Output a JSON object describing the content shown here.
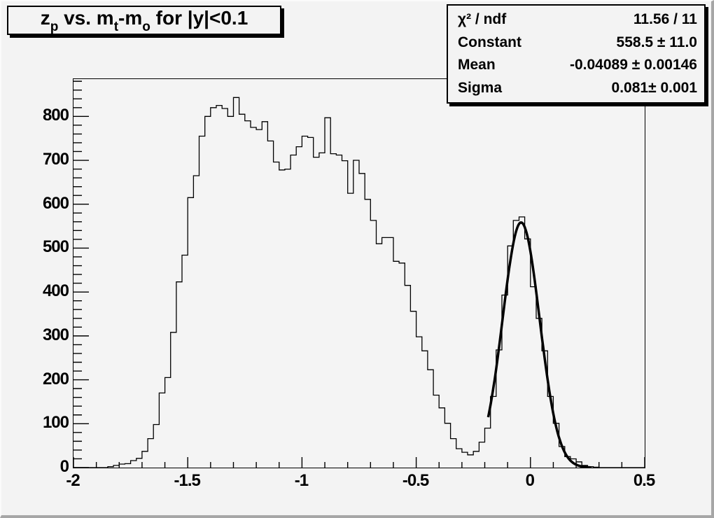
{
  "title": {
    "plain": "z_p vs. m_t-m_o for |y|<0.1",
    "segments": [
      {
        "t": "z"
      },
      {
        "s": "p"
      },
      {
        "t": " vs. m"
      },
      {
        "s": "t"
      },
      {
        "t": "-m"
      },
      {
        "s": "o"
      },
      {
        "t": " for |y|<0.1"
      }
    ]
  },
  "stats": {
    "rows": [
      {
        "label": "χ² / ndf",
        "value": "11.56 / 11"
      },
      {
        "label": "Constant",
        "value": "558.5 ± 11.0"
      },
      {
        "label": "Mean",
        "value": "-0.04089 ± 0.00146"
      },
      {
        "label": "Sigma",
        "value": "0.081± 0.001"
      }
    ]
  },
  "axes": {
    "x": {
      "min": -2.0,
      "max": 0.5,
      "major_tick_step": 0.5,
      "minor_tick_step": 0.1,
      "labels": [
        {
          "v": -2.0,
          "label": "-2"
        },
        {
          "v": -1.5,
          "label": "-1.5"
        },
        {
          "v": -1.0,
          "label": "-1"
        },
        {
          "v": -0.5,
          "label": "-0.5"
        },
        {
          "v": 0.0,
          "label": "0"
        },
        {
          "v": 0.5,
          "label": "0.5"
        }
      ]
    },
    "y": {
      "min": 0,
      "max": 885,
      "major_tick_step": 100,
      "minor_tick_step": 20,
      "labels": [
        {
          "v": 0,
          "label": "0"
        },
        {
          "v": 100,
          "label": "100"
        },
        {
          "v": 200,
          "label": "200"
        },
        {
          "v": 300,
          "label": "300"
        },
        {
          "v": 400,
          "label": "400"
        },
        {
          "v": 500,
          "label": "500"
        },
        {
          "v": 600,
          "label": "600"
        },
        {
          "v": 700,
          "label": "700"
        },
        {
          "v": 800,
          "label": "800"
        }
      ]
    }
  },
  "colors": {
    "background": "#f3f3f3",
    "line": "#000000",
    "fit_curve": "#000000",
    "frame_border": "#000000",
    "canvas_edge_dark": "#a6a6a6",
    "canvas_edge_light": "#fbfbfb"
  },
  "chart_data": {
    "type": "bar",
    "style": "step-histogram",
    "title": "z_p vs. m_t-m_o for |y|<0.1",
    "xlabel": "",
    "ylabel": "",
    "xlim": [
      -2.0,
      0.5
    ],
    "ylim": [
      0,
      885
    ],
    "grid": false,
    "legend": "none (stats box top-right)",
    "bins": {
      "x_start": -2.0,
      "width": 0.025,
      "count": 100,
      "values": [
        0,
        0,
        0,
        0,
        0,
        0,
        2,
        5,
        8,
        9,
        16,
        21,
        37,
        66,
        98,
        170,
        205,
        308,
        423,
        484,
        615,
        665,
        755,
        800,
        820,
        825,
        818,
        800,
        843,
        805,
        790,
        775,
        770,
        788,
        744,
        696,
        678,
        680,
        712,
        731,
        755,
        752,
        707,
        717,
        797,
        715,
        712,
        699,
        625,
        700,
        670,
        611,
        563,
        510,
        524,
        524,
        470,
        466,
        415,
        356,
        298,
        266,
        223,
        165,
        136,
        101,
        66,
        43,
        35,
        29,
        37,
        58,
        90,
        162,
        268,
        393,
        505,
        563,
        571,
        521,
        412,
        340,
        266,
        162,
        101,
        48,
        25,
        20,
        13,
        5,
        2,
        1,
        0,
        0,
        0,
        0,
        0,
        0,
        0,
        0
      ]
    },
    "fit": {
      "type": "gaussian",
      "chi2": 11.56,
      "ndf": 11,
      "constant": 558.5,
      "constant_err": 11.0,
      "mean": -0.04089,
      "mean_err": 0.00146,
      "sigma": 0.081,
      "sigma_err": 0.001,
      "draw_range": [
        -0.185,
        0.27
      ],
      "line_width": 3.5
    }
  }
}
